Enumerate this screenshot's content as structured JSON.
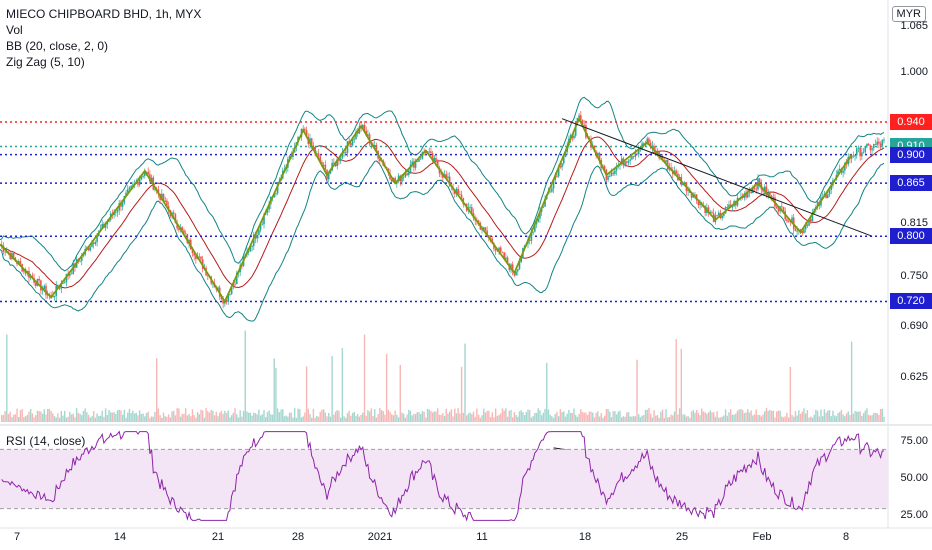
{
  "legend": {
    "title": "MIECO CHIPBOARD BHD, 1h, MYX",
    "vol": "Vol",
    "bb": "BB (20, close, 2, 0)",
    "zigzag": "Zig Zag (5, 10)"
  },
  "currency": "MYR",
  "rsi_legend": "RSI (14, close)",
  "colors": {
    "up": "#26a69a",
    "down": "#ef5350",
    "zigzag": "#7a9a0a",
    "bb_band": "#138484",
    "bb_basis": "#b71c1c",
    "level_blue": "#1f1fcf",
    "level_red": "#ff2020",
    "rsi": "#8e24aa",
    "rsi_band": "#f3e5f5",
    "trend": "#131722"
  },
  "chart_data": {
    "type": "candlestick",
    "price_axis_ticks": [
      "1.065",
      "1.000",
      "0.815",
      "0.750",
      "0.690",
      "0.625"
    ],
    "rsi_axis_ticks": [
      "75.00",
      "50.00",
      "25.00"
    ],
    "x_ticks": [
      "7",
      "14",
      "21",
      "28",
      "2021",
      "11",
      "18",
      "25",
      "Feb",
      "8"
    ],
    "horizontal_levels": [
      {
        "value": "0.940",
        "color": "#ff2020"
      },
      {
        "value": "0.910",
        "color": "#26a69a"
      },
      {
        "value": "0.900",
        "color": "#1f1fcf"
      },
      {
        "value": "0.865",
        "color": "#1f1fcf"
      },
      {
        "value": "0.800",
        "color": "#1f1fcf"
      },
      {
        "value": "0.720",
        "color": "#1f1fcf"
      }
    ],
    "zigzag_pivots": [
      {
        "t": 0,
        "p": 0.79
      },
      {
        "t": 30,
        "p": 0.725
      },
      {
        "t": 85,
        "p": 0.88
      },
      {
        "t": 132,
        "p": 0.72
      },
      {
        "t": 178,
        "p": 0.93
      },
      {
        "t": 192,
        "p": 0.875
      },
      {
        "t": 212,
        "p": 0.935
      },
      {
        "t": 232,
        "p": 0.865
      },
      {
        "t": 250,
        "p": 0.905
      },
      {
        "t": 302,
        "p": 0.755
      },
      {
        "t": 340,
        "p": 0.944
      },
      {
        "t": 356,
        "p": 0.875
      },
      {
        "t": 380,
        "p": 0.915
      },
      {
        "t": 420,
        "p": 0.82
      },
      {
        "t": 445,
        "p": 0.865
      },
      {
        "t": 470,
        "p": 0.805
      },
      {
        "t": 500,
        "p": 0.9
      }
    ],
    "trendline_price": [
      {
        "t": 330,
        "p": 0.944
      },
      {
        "t": 512,
        "p": 0.8
      }
    ],
    "trendline_rsi": [
      {
        "t": 325,
        "v": 71
      },
      {
        "t": 495,
        "v": 43
      }
    ],
    "rsi_bands": [
      70,
      30
    ],
    "series_length": 520
  }
}
